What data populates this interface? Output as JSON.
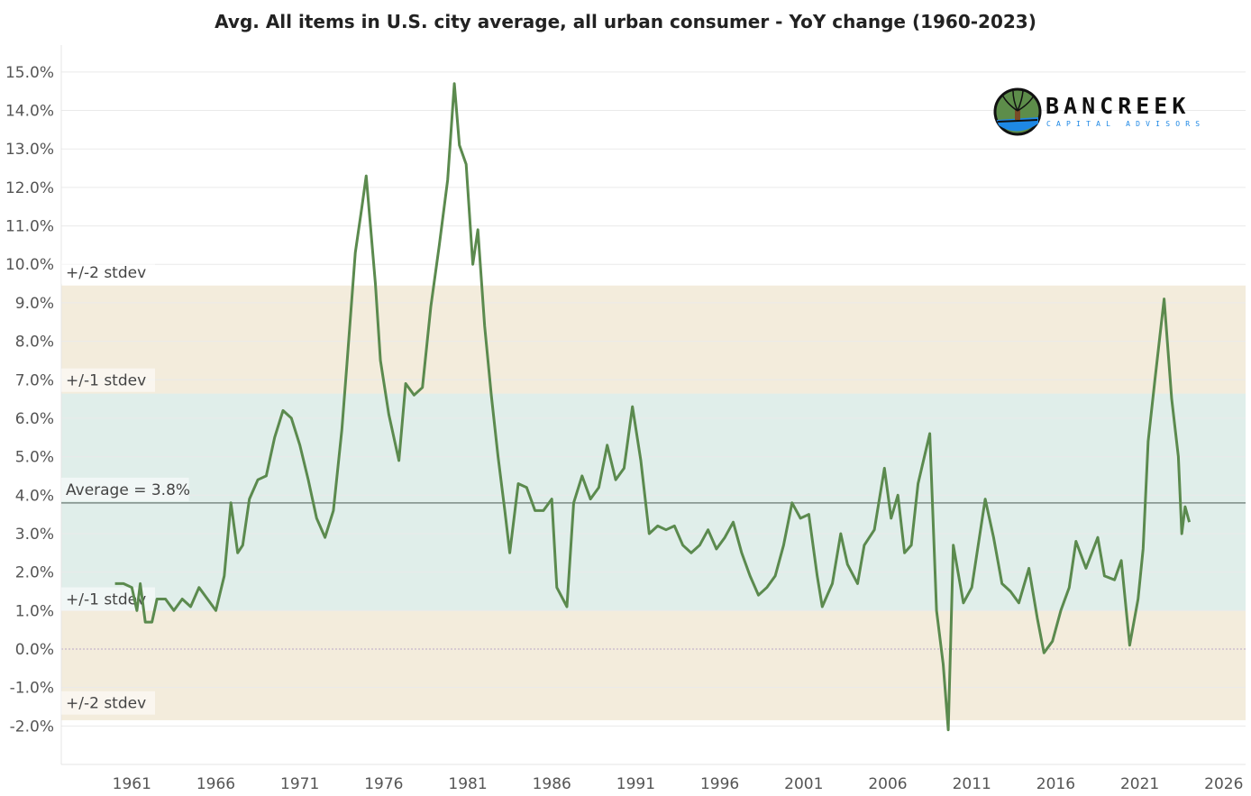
{
  "chart_data": {
    "type": "line",
    "title": "Avg. All items in U.S. city average, all urban consumer - YoY change (1960-2023)",
    "xlabel": "",
    "ylabel": "",
    "x_ticks": [
      "1961",
      "1966",
      "1971",
      "1976",
      "1981",
      "1986",
      "1991",
      "1996",
      "2001",
      "2006",
      "2011",
      "2016",
      "2021",
      "2026"
    ],
    "y_ticks": [
      "-2.0%",
      "-1.0%",
      "0.0%",
      "1.0%",
      "2.0%",
      "3.0%",
      "4.0%",
      "5.0%",
      "6.0%",
      "7.0%",
      "8.0%",
      "9.0%",
      "10.0%",
      "11.0%",
      "12.0%",
      "13.0%",
      "14.0%",
      "15.0%"
    ],
    "ylim": [
      -3,
      15.7
    ],
    "xlim": [
      1956.8,
      2027.3
    ],
    "grid": true,
    "line_color": "#5b8a4e",
    "average": {
      "value": 3.8,
      "label": "Average = 3.8%"
    },
    "bands": [
      {
        "label_top": "+/-2 stdev",
        "label_bottom": "+/-2 stdev",
        "low": -1.85,
        "high": 9.45,
        "color": "#f3ecdc"
      },
      {
        "label_top": "+/-1 stdev",
        "label_bottom": "+/-1 stdev",
        "low": 1.0,
        "high": 6.64,
        "color": "#e0eeea"
      }
    ],
    "series": [
      {
        "x": [
          1960.0,
          1960.5,
          1961.0,
          1961.3,
          1961.5,
          1961.8,
          1962.2,
          1962.5,
          1963.0,
          1963.5,
          1964.0,
          1964.5,
          1965.0,
          1965.5,
          1966.0,
          1966.5,
          1966.9,
          1967.3,
          1967.6,
          1968.0,
          1968.5,
          1969.0,
          1969.5,
          1970.0,
          1970.5,
          1971.0,
          1971.5,
          1972.0,
          1972.5,
          1973.0,
          1973.5,
          1973.8,
          1974.3,
          1974.7,
          1974.95,
          1975.5,
          1975.8,
          1976.3,
          1976.9,
          1977.3,
          1977.8,
          1978.3,
          1978.8,
          1979.3,
          1979.8,
          1980.2,
          1980.5,
          1980.9,
          1981.3,
          1981.6,
          1982.0,
          1982.4,
          1982.8,
          1983.2,
          1983.5,
          1984.0,
          1984.5,
          1985.0,
          1985.5,
          1986.0,
          1986.3,
          1986.9,
          1987.3,
          1987.8,
          1988.3,
          1988.8,
          1989.3,
          1989.8,
          1990.3,
          1990.8,
          1991.3,
          1991.8,
          1992.3,
          1992.8,
          1993.3,
          1993.8,
          1994.3,
          1994.8,
          1995.3,
          1995.8,
          1996.3,
          1996.8,
          1997.3,
          1997.8,
          1998.3,
          1998.8,
          1999.3,
          1999.8,
          2000.3,
          2000.8,
          2001.3,
          2001.8,
          2002.1,
          2002.7,
          2003.2,
          2003.6,
          2004.2,
          2004.6,
          2005.2,
          2005.8,
          2006.2,
          2006.6,
          2007.0,
          2007.4,
          2007.8,
          2008.5,
          2008.9,
          2009.3,
          2009.6,
          2009.9,
          2010.5,
          2011.0,
          2011.8,
          2012.3,
          2012.8,
          2013.3,
          2013.8,
          2014.4,
          2014.9,
          2015.3,
          2015.8,
          2016.3,
          2016.8,
          2017.2,
          2017.8,
          2018.5,
          2018.9,
          2019.5,
          2019.9,
          2020.4,
          2020.9,
          2021.2,
          2021.5,
          2021.9,
          2022.45,
          2022.9,
          2023.3,
          2023.5,
          2023.7,
          2023.95
        ],
        "values": [
          1.7,
          1.7,
          1.6,
          1.0,
          1.7,
          0.7,
          0.7,
          1.3,
          1.3,
          1.0,
          1.3,
          1.1,
          1.6,
          1.3,
          1.0,
          1.9,
          3.8,
          2.5,
          2.7,
          3.9,
          4.4,
          4.5,
          5.5,
          6.2,
          6.0,
          5.3,
          4.4,
          3.4,
          2.9,
          3.6,
          5.7,
          7.4,
          10.3,
          11.5,
          12.3,
          9.5,
          7.5,
          6.1,
          4.9,
          6.9,
          6.6,
          6.8,
          8.9,
          10.5,
          12.2,
          14.7,
          13.1,
          12.6,
          10.0,
          10.9,
          8.4,
          6.6,
          5.0,
          3.6,
          2.5,
          4.3,
          4.2,
          3.6,
          3.6,
          3.9,
          1.6,
          1.1,
          3.8,
          4.5,
          3.9,
          4.2,
          5.3,
          4.4,
          4.7,
          6.3,
          4.9,
          3.0,
          3.2,
          3.1,
          3.2,
          2.7,
          2.5,
          2.7,
          3.1,
          2.6,
          2.9,
          3.3,
          2.5,
          1.9,
          1.4,
          1.6,
          1.9,
          2.7,
          3.8,
          3.4,
          3.5,
          1.9,
          1.1,
          1.7,
          3.0,
          2.2,
          1.7,
          2.7,
          3.1,
          4.7,
          3.4,
          4.0,
          2.5,
          2.7,
          4.3,
          5.6,
          1.0,
          -0.4,
          -2.1,
          2.7,
          1.2,
          1.6,
          3.9,
          2.9,
          1.7,
          1.5,
          1.2,
          2.1,
          0.8,
          -0.1,
          0.2,
          1.0,
          1.6,
          2.8,
          2.1,
          2.9,
          1.9,
          1.8,
          2.3,
          0.1,
          1.3,
          2.6,
          5.4,
          7.0,
          9.1,
          6.5,
          5.0,
          3.0,
          3.7,
          3.3
        ]
      }
    ]
  },
  "logo": {
    "name": "BANCREEK",
    "subtitle": "CAPITAL ADVISORS"
  }
}
